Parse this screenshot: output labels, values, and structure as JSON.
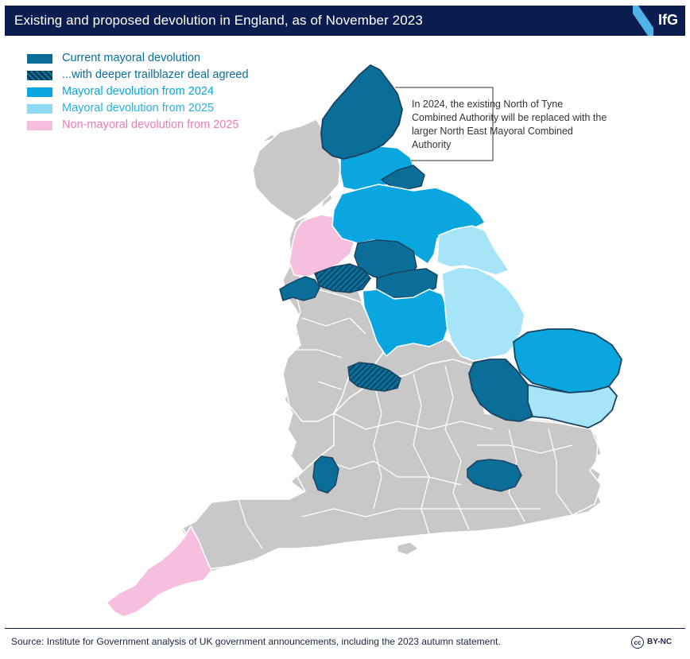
{
  "header": {
    "title": "Existing and proposed devolution in England, as of November 2023",
    "logo_text": "IfG",
    "logo_icon": "ifg-slash-icon"
  },
  "colors": {
    "current": "#0a6e98",
    "trailblazer": "#0a6e98",
    "from_2024": "#0aa6e0",
    "from_2025": "#a6e4f7",
    "non_mayoral": "#f7bfdf",
    "none": "#c8c8c8",
    "outline": "#1a4260"
  },
  "legend": [
    {
      "label": "Current mayoral devolution",
      "color": "#0a6e98",
      "text_color": "#0a6e98",
      "pattern": false
    },
    {
      "label": "...with deeper trailblazer deal agreed",
      "color": "#0a6e98",
      "text_color": "#0a6e98",
      "pattern": true
    },
    {
      "label": "Mayoral devolution from 2024",
      "color": "#0aa6e0",
      "text_color": "#0aa6e0",
      "pattern": false
    },
    {
      "label": "Mayoral devolution from 2025",
      "color": "#8fd9f2",
      "text_color": "#2bb0dd",
      "pattern": false
    },
    {
      "label": "Non-mayoral devolution from 2025",
      "color": "#f7bfdf",
      "text_color": "#f07ab8",
      "pattern": false
    }
  ],
  "callout": {
    "text": "In 2024, the existing North of Tyne Combined Authority will be replaced with the larger North East Mayoral Combined Authority"
  },
  "footer": {
    "source": "Source: Institute for Government analysis of UK government announcements, including the 2023 autumn statement.",
    "license": "BY-NC",
    "license_icon": "cc-icon",
    "license_icon_glyph": "cc"
  }
}
